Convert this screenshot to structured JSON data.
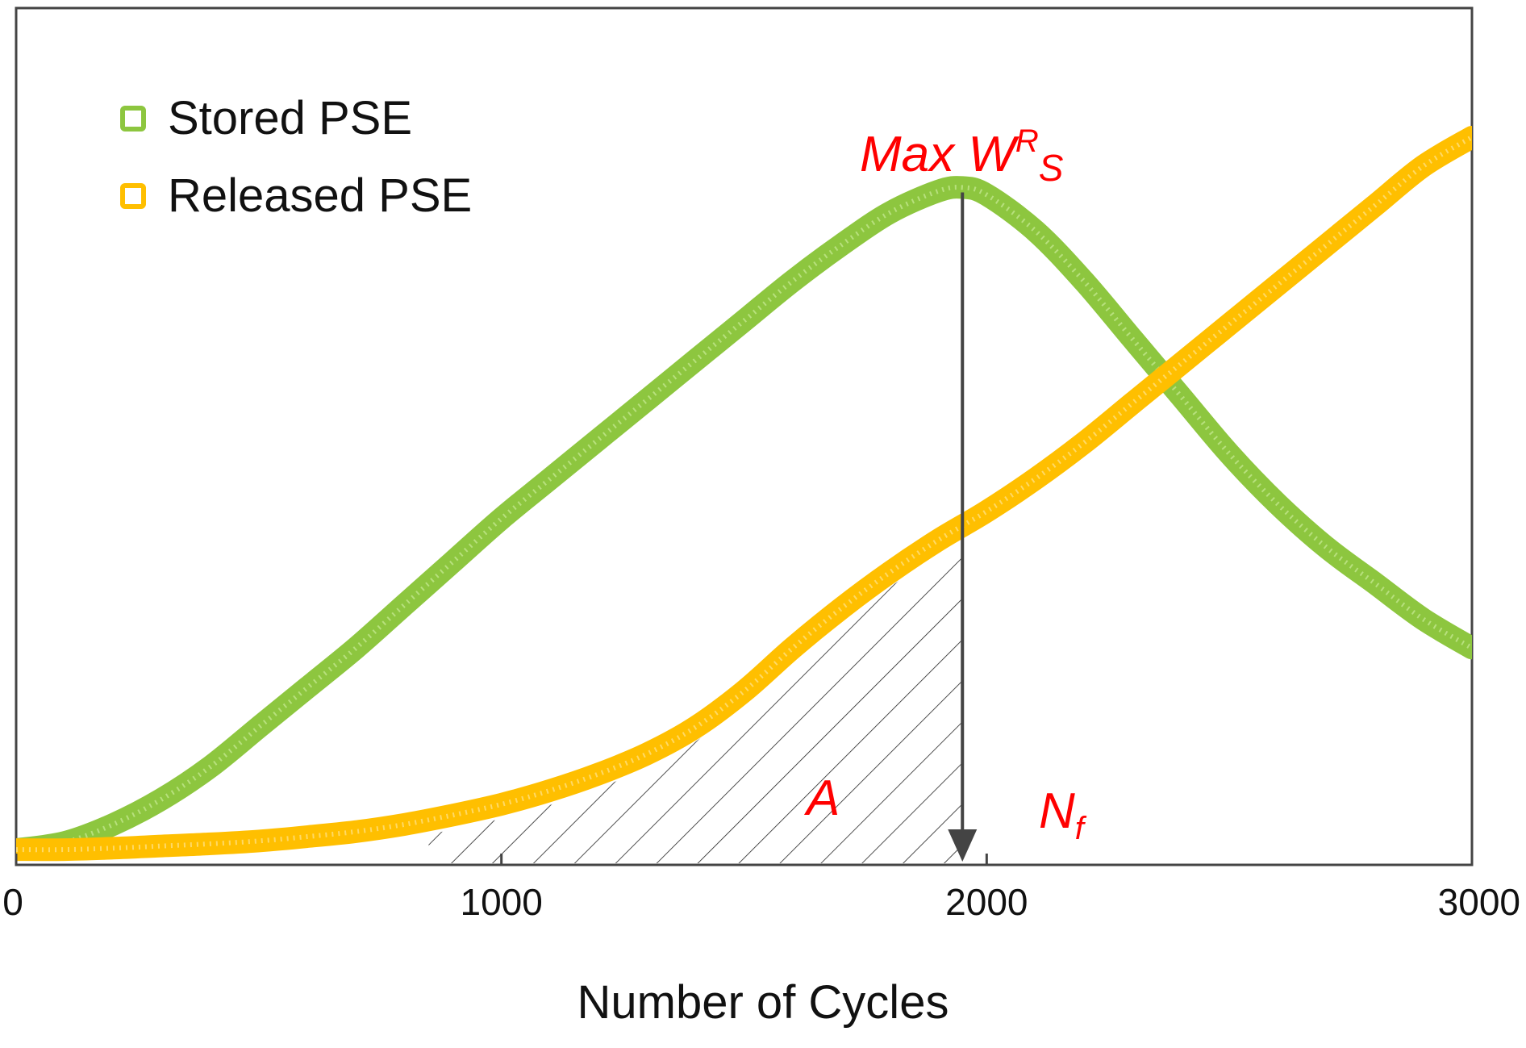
{
  "chart_data": {
    "type": "line",
    "title": "",
    "xlabel": "Number of Cycles",
    "ylabel": "",
    "xlim": [
      0,
      3000
    ],
    "ylim": [
      0,
      1
    ],
    "xticks": [
      0,
      1000,
      2000,
      3000
    ],
    "xtick_labels": [
      "0",
      "1000",
      "2000",
      "3000"
    ],
    "grid": false,
    "legend": {
      "position": "top-left"
    },
    "series": [
      {
        "name": "Stored PSE",
        "color": "#8dc63f",
        "x": [
          0,
          100,
          200,
          300,
          400,
          500,
          600,
          700,
          800,
          900,
          1000,
          1100,
          1200,
          1300,
          1400,
          1500,
          1600,
          1700,
          1800,
          1900,
          1950,
          2000,
          2100,
          2200,
          2300,
          2400,
          2500,
          2600,
          2700,
          2800,
          2900,
          3000
        ],
        "y": [
          0.01,
          0.02,
          0.045,
          0.08,
          0.125,
          0.18,
          0.235,
          0.29,
          0.35,
          0.41,
          0.47,
          0.525,
          0.58,
          0.635,
          0.69,
          0.745,
          0.8,
          0.85,
          0.895,
          0.925,
          0.93,
          0.92,
          0.87,
          0.8,
          0.72,
          0.64,
          0.56,
          0.49,
          0.43,
          0.38,
          0.33,
          0.29
        ]
      },
      {
        "name": "Released PSE",
        "color": "#ffbf00",
        "x": [
          0,
          100,
          200,
          300,
          400,
          500,
          600,
          700,
          800,
          900,
          1000,
          1100,
          1200,
          1300,
          1400,
          1500,
          1600,
          1700,
          1800,
          1900,
          2000,
          2100,
          2200,
          2300,
          2400,
          2500,
          2600,
          2700,
          2800,
          2900,
          3000
        ],
        "y": [
          0.01,
          0.01,
          0.012,
          0.015,
          0.018,
          0.022,
          0.028,
          0.035,
          0.045,
          0.058,
          0.073,
          0.092,
          0.115,
          0.143,
          0.18,
          0.23,
          0.29,
          0.345,
          0.395,
          0.44,
          0.48,
          0.525,
          0.575,
          0.63,
          0.685,
          0.74,
          0.795,
          0.85,
          0.905,
          0.96,
          1.0
        ]
      }
    ],
    "annotations": {
      "max_label": "Max W",
      "max_sup": "R",
      "max_sub": "S",
      "area_label": "A",
      "nf_label": "N",
      "nf_sub": "f",
      "max_x": 1950,
      "shaded_from_x": 850,
      "shaded_to_x": 1950
    }
  }
}
